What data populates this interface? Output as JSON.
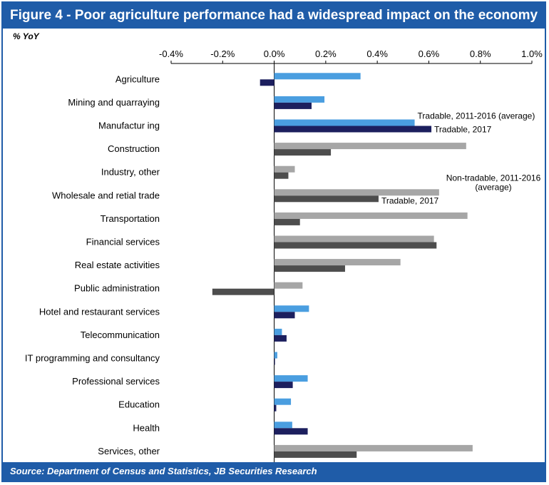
{
  "header": {
    "title": "Figure 4 - Poor agriculture performance had a widespread impact on the economy"
  },
  "footer": {
    "source": "Source: Department of Census and Statistics, JB Securities Research"
  },
  "chart_data": {
    "type": "bar",
    "orientation": "horizontal",
    "unit_label": "% YoY",
    "xlim": [
      -0.4,
      1.0
    ],
    "x_ticks": [
      "-0.4%",
      "-0.2%",
      "0.0%",
      "0.2%",
      "0.4%",
      "0.6%",
      "0.8%",
      "1.0%"
    ],
    "x_tick_values": [
      -0.4,
      -0.2,
      0.0,
      0.2,
      0.4,
      0.6,
      0.8,
      1.0
    ],
    "categories": [
      {
        "label": "Agriculture",
        "group": "tradable",
        "avg": 0.335,
        "y2017": -0.055
      },
      {
        "label": "Mining and quarraying",
        "group": "tradable",
        "avg": 0.195,
        "y2017": 0.145
      },
      {
        "label": "Manufactur ing",
        "group": "tradable",
        "avg": 0.545,
        "y2017": 0.61
      },
      {
        "label": "Construction",
        "group": "nontradable",
        "avg": 0.745,
        "y2017": 0.22
      },
      {
        "label": "Industry, other",
        "group": "nontradable",
        "avg": 0.08,
        "y2017": 0.055
      },
      {
        "label": "Wholesale and retial trade",
        "group": "nontradable",
        "avg": 0.64,
        "y2017": 0.405
      },
      {
        "label": "Transportation",
        "group": "nontradable",
        "avg": 0.75,
        "y2017": 0.1
      },
      {
        "label": "Financial services",
        "group": "nontradable",
        "avg": 0.62,
        "y2017": 0.63
      },
      {
        "label": "Real estate activities",
        "group": "nontradable",
        "avg": 0.49,
        "y2017": 0.275
      },
      {
        "label": "Public administration",
        "group": "nontradable",
        "avg": 0.11,
        "y2017": -0.24
      },
      {
        "label": "Hotel and restaurant services",
        "group": "tradable",
        "avg": 0.135,
        "y2017": 0.08
      },
      {
        "label": "Telecommunication",
        "group": "tradable",
        "avg": 0.03,
        "y2017": 0.048
      },
      {
        "label": "IT programming and consultancy",
        "group": "tradable",
        "avg": 0.012,
        "y2017": 0.003
      },
      {
        "label": "Professional services",
        "group": "tradable",
        "avg": 0.13,
        "y2017": 0.072
      },
      {
        "label": "Education",
        "group": "tradable",
        "avg": 0.065,
        "y2017": 0.008
      },
      {
        "label": "Health",
        "group": "tradable",
        "avg": 0.07,
        "y2017": 0.13
      },
      {
        "label": "Services, other",
        "group": "nontradable",
        "avg": 0.77,
        "y2017": 0.32
      }
    ],
    "annotations": [
      {
        "text": "Tradable, 2011-2016 (average)",
        "anchor_category": 2,
        "bar": "avg"
      },
      {
        "text": "Tradable, 2017",
        "anchor_category": 2,
        "bar": "y2017"
      },
      {
        "text": "Non-tradable, 2011-2016",
        "anchor_category": 5,
        "bar": "avg",
        "line": 1
      },
      {
        "text": "(average)",
        "anchor_category": 5,
        "bar": "avg",
        "line": 2
      },
      {
        "text": "Tradable, 2017",
        "anchor_category": 5,
        "bar": "y2017"
      }
    ],
    "colors": {
      "tradable_avg": "#4a9ee0",
      "tradable_2017": "#1c1f5e",
      "nontradable_avg": "#a6a6a6",
      "nontradable_2017": "#4d4d4d",
      "frame": "#1f5ca8"
    }
  }
}
